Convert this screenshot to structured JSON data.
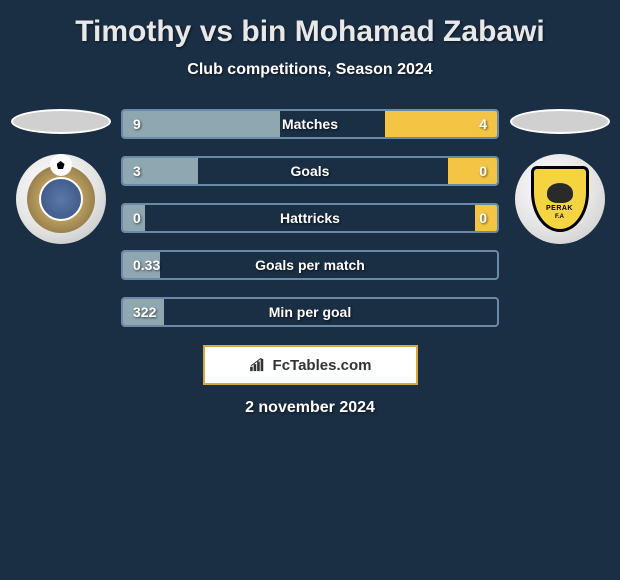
{
  "title": "Timothy vs bin Mohamad Zabawi",
  "subtitle": "Club competitions, Season 2024",
  "background_color": "#1a2e44",
  "bar_border_color": "#6a8aa8",
  "left_fill_color": "#8ea7b0",
  "right_fill_color": "#f4c444",
  "text_color": "#ffffff",
  "rows": [
    {
      "metric": "Matches",
      "left": "9",
      "right": "4",
      "left_pct": 42,
      "right_pct": 30
    },
    {
      "metric": "Goals",
      "left": "3",
      "right": "0",
      "left_pct": 20,
      "right_pct": 13
    },
    {
      "metric": "Hattricks",
      "left": "0",
      "right": "0",
      "left_pct": 6,
      "right_pct": 6
    },
    {
      "metric": "Goals per match",
      "left": "0.33",
      "right": "",
      "left_pct": 10,
      "right_pct": 0
    },
    {
      "metric": "Min per goal",
      "left": "322",
      "right": "",
      "left_pct": 11,
      "right_pct": 0
    }
  ],
  "brand": "FcTables.com",
  "date": "2 november 2024",
  "left_team": {
    "shield_label": ""
  },
  "right_team": {
    "shield_label": "PERAK",
    "sub_label": "F.A"
  }
}
